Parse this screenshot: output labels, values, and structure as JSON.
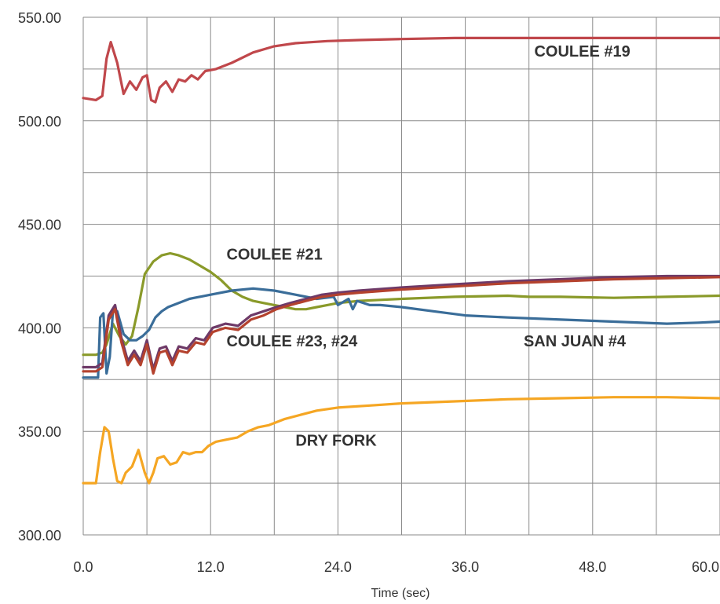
{
  "chart_data": {
    "type": "line",
    "xlabel": "Time (sec)",
    "ylabel": "",
    "xlim": [
      0,
      60
    ],
    "ylim": [
      300,
      550
    ],
    "x_ticks": [
      "0.0",
      "12.0",
      "24.0",
      "36.0",
      "48.0",
      "60.0"
    ],
    "y_ticks": [
      "550.00",
      "500.00",
      "450.00",
      "400.00",
      "350.00",
      "300.00"
    ],
    "grid": true,
    "series": [
      {
        "name": "COULEE #19",
        "color": "#c0474b",
        "x": [
          0,
          1.2,
          1.8,
          2.2,
          2.6,
          3.2,
          3.8,
          4.4,
          5.0,
          5.6,
          6.0,
          6.4,
          6.8,
          7.2,
          7.8,
          8.4,
          9.0,
          9.6,
          10.2,
          10.8,
          11.5,
          12.5,
          14,
          16,
          18,
          20,
          23,
          26,
          30,
          35,
          40,
          45,
          50,
          55,
          60
        ],
        "y": [
          511,
          510,
          512,
          530,
          538,
          528,
          513,
          519,
          515,
          521,
          522,
          510,
          509,
          516,
          519,
          514,
          520,
          519,
          522,
          520,
          524,
          525,
          528,
          533,
          536,
          537.5,
          538.5,
          539,
          539.5,
          540,
          540,
          540,
          540,
          540,
          540
        ]
      },
      {
        "name": "COULEE #21",
        "color": "#8a9a2a",
        "x": [
          0,
          1.2,
          1.8,
          2.2,
          2.8,
          3.4,
          4.0,
          4.6,
          5.2,
          5.8,
          6.6,
          7.4,
          8.2,
          9.0,
          10,
          11,
          12,
          13,
          14,
          15,
          16,
          17,
          18,
          19,
          20,
          21,
          22,
          23,
          24,
          26,
          28,
          30,
          35,
          40,
          42,
          45,
          50,
          55,
          60
        ],
        "y": [
          387,
          387,
          388,
          392,
          402,
          396,
          392,
          396,
          410,
          426,
          432,
          435,
          436,
          435,
          433,
          430,
          427,
          423,
          418,
          415,
          413,
          412,
          411,
          410,
          409,
          409,
          410,
          411,
          412,
          413,
          413.5,
          414,
          415,
          415.5,
          415,
          415,
          414.5,
          415,
          415.5
        ]
      },
      {
        "name": "SAN JUAN #4",
        "color": "#3a6d99",
        "x": [
          0,
          1.0,
          1.4,
          1.6,
          1.9,
          2.2,
          2.5,
          2.8,
          3.2,
          3.8,
          4.4,
          5.0,
          5.6,
          6.2,
          6.8,
          7.4,
          8.0,
          9,
          10,
          12,
          14,
          16,
          18,
          20,
          22,
          23.6,
          24,
          25,
          25.4,
          25.8,
          27,
          28,
          30,
          33,
          36,
          40,
          45,
          50,
          55,
          58,
          60
        ],
        "y": [
          376,
          376,
          376,
          405,
          407,
          378,
          386,
          408,
          408,
          397,
          394,
          394,
          396,
          399,
          405,
          408,
          410,
          412,
          414,
          416,
          418,
          419,
          418,
          416,
          414,
          415,
          411,
          414,
          409,
          413,
          411,
          411,
          410,
          408,
          406,
          405,
          404,
          403,
          402,
          402.5,
          403
        ]
      },
      {
        "name": "COULEE #23",
        "color": "#6e3a68",
        "x": [
          0,
          1.2,
          1.8,
          2.4,
          3.0,
          3.6,
          4.2,
          4.8,
          5.4,
          6.0,
          6.6,
          7.2,
          7.8,
          8.4,
          9.0,
          9.8,
          10.6,
          11.4,
          12.2,
          13.4,
          14.6,
          15.8,
          17,
          18.2,
          19.5,
          21,
          22.5,
          24,
          26,
          30,
          35,
          40,
          45,
          50,
          55,
          60
        ],
        "y": [
          381,
          381,
          383,
          406,
          411,
          395,
          384,
          389,
          384,
          394,
          380,
          390,
          391,
          384,
          391,
          390,
          395,
          394,
          400,
          402,
          401,
          406,
          408,
          410,
          412,
          414,
          416,
          417,
          418,
          419.5,
          421,
          422.5,
          423.5,
          424.5,
          425,
          425
        ]
      },
      {
        "name": "COULEE #24",
        "color": "#b4422e",
        "x": [
          0,
          1.2,
          1.8,
          2.4,
          3.0,
          3.6,
          4.2,
          4.8,
          5.4,
          6.0,
          6.6,
          7.2,
          7.8,
          8.4,
          9.0,
          9.8,
          10.6,
          11.4,
          12.2,
          13.4,
          14.6,
          15.8,
          17,
          18.2,
          19.5,
          21,
          22.5,
          24,
          26,
          30,
          35,
          40,
          45,
          50,
          55,
          60
        ],
        "y": [
          379,
          379,
          381,
          404,
          409,
          393,
          382,
          387,
          382,
          392,
          378,
          388,
          389,
          382,
          389,
          388,
          393,
          392,
          398,
          400,
          399,
          404,
          406,
          409,
          411,
          413,
          415,
          416,
          417,
          418.5,
          420,
          421.5,
          422.5,
          423.5,
          424,
          424.5
        ]
      },
      {
        "name": "DRY FORK",
        "color": "#f5a623",
        "x": [
          0,
          1.2,
          1.6,
          2.0,
          2.4,
          2.8,
          3.2,
          3.6,
          4.0,
          4.6,
          5.2,
          5.8,
          6.2,
          6.6,
          7.0,
          7.6,
          8.2,
          8.8,
          9.4,
          10.0,
          10.6,
          11.2,
          11.8,
          12.5,
          13.5,
          14.5,
          15.5,
          16.5,
          17.5,
          19,
          20.5,
          22,
          24,
          27,
          30,
          35,
          40,
          45,
          50,
          55,
          60
        ],
        "y": [
          325,
          325,
          340,
          352,
          350,
          337,
          326,
          325,
          330,
          333,
          341,
          330,
          325,
          330,
          337,
          338,
          334,
          335,
          340,
          339,
          340,
          340,
          343,
          345,
          346,
          347,
          350,
          352,
          353,
          356,
          358,
          360,
          361.5,
          362.5,
          363.5,
          364.5,
          365.5,
          366,
          366.5,
          366.5,
          366
        ]
      }
    ],
    "annotations": [
      {
        "text": "COULEE #19",
        "x": 42.5,
        "y": 531
      },
      {
        "text": "COULEE #21",
        "x": 13.5,
        "y": 433
      },
      {
        "text": "COULEE #23, #24",
        "x": 13.5,
        "y": 391
      },
      {
        "text": "SAN JUAN #4",
        "x": 41.5,
        "y": 391
      },
      {
        "text": "DRY FORK",
        "x": 20,
        "y": 343
      }
    ]
  }
}
